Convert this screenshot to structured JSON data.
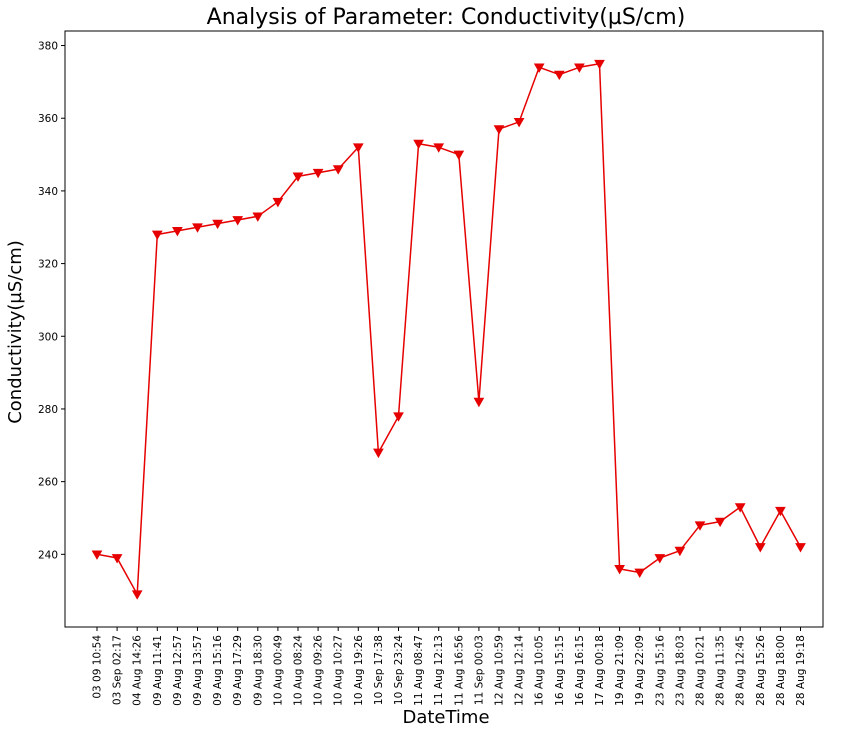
{
  "chart_data": {
    "type": "line",
    "title": "Analysis of Parameter: Conductivity(µS/cm)",
    "xlabel": "DateTime",
    "ylabel": "Conductivity(µS/cm)",
    "ylim": [
      220,
      384
    ],
    "yticks": [
      240,
      260,
      280,
      300,
      320,
      340,
      360,
      380
    ],
    "grid": false,
    "line_color": "#e60000",
    "marker": "triangle-down",
    "categories": [
      "03 09 10:54",
      "03 Sep 02:17",
      "04 Aug 14:26",
      "09 Aug 11:41",
      "09 Aug 12:57",
      "09 Aug 13:57",
      "09 Aug 15:16",
      "09 Aug 17:29",
      "09 Aug 18:30",
      "10 Aug 00:49",
      "10 Aug 08:24",
      "10 Aug 09:26",
      "10 Aug 10:27",
      "10 Aug 19:26",
      "10 Sep 17:38",
      "10 Sep 23:24",
      "11 Aug 08:47",
      "11 Aug 12:13",
      "11 Aug 16:56",
      "11 Sep 00:03",
      "12 Aug 10:59",
      "12 Aug 12:14",
      "16 Aug 10:05",
      "16 Aug 15:15",
      "16 Aug 16:15",
      "17 Aug 00:18",
      "19 Aug 21:09",
      "19 Aug 22:09",
      "23 Aug 15:16",
      "23 Aug 18:03",
      "28 Aug 10:21",
      "28 Aug 11:35",
      "28 Aug 12:45",
      "28 Aug 15:26",
      "28 Aug 18:00",
      "28 Aug 19:18"
    ],
    "values": [
      240,
      239,
      229,
      328,
      329,
      330,
      331,
      332,
      333,
      337,
      344,
      345,
      346,
      352,
      268,
      278,
      353,
      352,
      350,
      282,
      357,
      359,
      374,
      372,
      374,
      375,
      236,
      235,
      239,
      241,
      248,
      249,
      253,
      242,
      252,
      242
    ]
  }
}
